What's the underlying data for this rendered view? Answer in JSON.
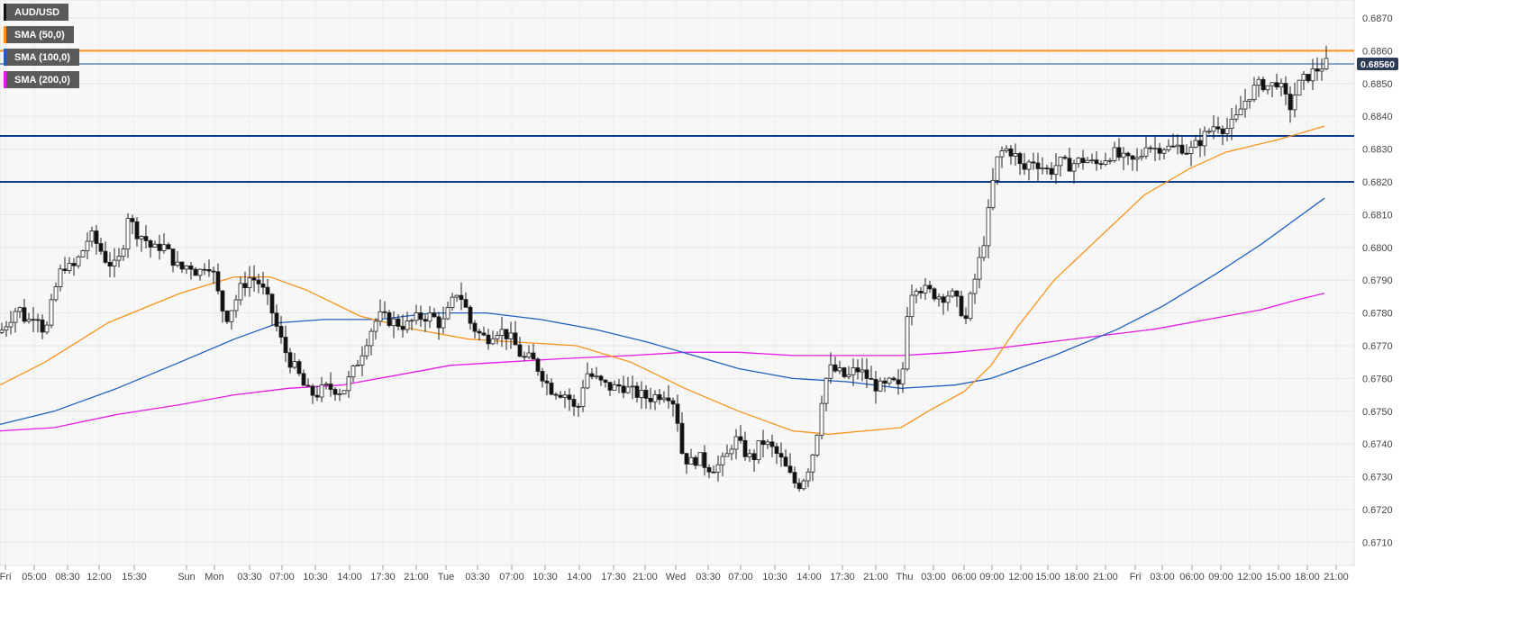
{
  "chart_data": {
    "type": "candlestick",
    "symbol": "AUD/USD",
    "legend": [
      {
        "label": "AUD/USD",
        "color": "#111111"
      },
      {
        "label": "SMA (50,0)",
        "color": "#f7931a"
      },
      {
        "label": "SMA (100,0)",
        "color": "#1f5fbf"
      },
      {
        "label": "SMA (200,0)",
        "color": "#e619e6"
      }
    ],
    "ylim": [
      0.67,
      0.6875
    ],
    "y_ticks": [
      "0.6710",
      "0.6720",
      "0.6730",
      "0.6740",
      "0.6750",
      "0.6760",
      "0.6770",
      "0.6780",
      "0.6790",
      "0.6800",
      "0.6810",
      "0.6820",
      "0.6830",
      "0.6840",
      "0.6850",
      "0.6860",
      "0.6870"
    ],
    "x_ticks": [
      "Fri",
      "05:00",
      "08:30",
      "12:00",
      "15:30",
      "Sun",
      "Mon",
      "03:30",
      "07:00",
      "10:30",
      "14:00",
      "17:30",
      "21:00",
      "Tue",
      "03:30",
      "07:00",
      "10:30",
      "14:00",
      "17:30",
      "21:00",
      "Wed",
      "03:30",
      "07:00",
      "10:30",
      "14:00",
      "17:30",
      "21:00",
      "Thu",
      "03:00",
      "06:00",
      "09:00",
      "12:00",
      "15:00",
      "18:00",
      "21:00",
      "Fri",
      "03:00",
      "06:00",
      "09:00",
      "12:00",
      "15:00",
      "18:00",
      "21:00"
    ],
    "last_price": "0.68560",
    "last_price_value": 0.6856,
    "horizontal_levels": [
      {
        "value": 0.686,
        "color": "#f7931a"
      },
      {
        "value": 0.6856,
        "color": "#1f4e99"
      },
      {
        "value": 0.6834,
        "color": "#0d3b8c"
      },
      {
        "value": 0.682,
        "color": "#0d3b8c"
      }
    ],
    "price_path": [
      [
        0,
        0.6774
      ],
      [
        10,
        0.6778
      ],
      [
        20,
        0.6782
      ],
      [
        30,
        0.6777
      ],
      [
        40,
        0.6781
      ],
      [
        50,
        0.6773
      ],
      [
        60,
        0.6786
      ],
      [
        70,
        0.6795
      ],
      [
        80,
        0.6793
      ],
      [
        90,
        0.6798
      ],
      [
        100,
        0.6804
      ],
      [
        110,
        0.68
      ],
      [
        118,
        0.6796
      ],
      [
        128,
        0.6794
      ],
      [
        135,
        0.6798
      ],
      [
        142,
        0.681
      ],
      [
        150,
        0.6805
      ],
      [
        160,
        0.6803
      ],
      [
        170,
        0.6799
      ],
      [
        180,
        0.6801
      ],
      [
        190,
        0.6797
      ],
      [
        200,
        0.6793
      ],
      [
        210,
        0.6795
      ],
      [
        220,
        0.6792
      ],
      [
        230,
        0.6796
      ],
      [
        238,
        0.6791
      ],
      [
        245,
        0.6782
      ],
      [
        252,
        0.6779
      ],
      [
        260,
        0.6783
      ],
      [
        268,
        0.6788
      ],
      [
        278,
        0.6791
      ],
      [
        288,
        0.6789
      ],
      [
        300,
        0.6782
      ],
      [
        310,
        0.6773
      ],
      [
        320,
        0.6766
      ],
      [
        330,
        0.6762
      ],
      [
        340,
        0.6756
      ],
      [
        350,
        0.6755
      ],
      [
        360,
        0.6757
      ],
      [
        370,
        0.6757
      ],
      [
        380,
        0.6756
      ],
      [
        390,
        0.6761
      ],
      [
        400,
        0.6767
      ],
      [
        410,
        0.6774
      ],
      [
        420,
        0.6779
      ],
      [
        430,
        0.6778
      ],
      [
        440,
        0.6777
      ],
      [
        450,
        0.6776
      ],
      [
        460,
        0.6778
      ],
      [
        470,
        0.6779
      ],
      [
        480,
        0.6779
      ],
      [
        490,
        0.6776
      ],
      [
        500,
        0.6782
      ],
      [
        508,
        0.6787
      ],
      [
        515,
        0.6783
      ],
      [
        522,
        0.6777
      ],
      [
        530,
        0.6774
      ],
      [
        540,
        0.6772
      ],
      [
        550,
        0.6775
      ],
      [
        560,
        0.6774
      ],
      [
        570,
        0.6771
      ],
      [
        580,
        0.6766
      ],
      [
        590,
        0.6766
      ],
      [
        600,
        0.6762
      ],
      [
        610,
        0.6757
      ],
      [
        620,
        0.6756
      ],
      [
        630,
        0.6755
      ],
      [
        640,
        0.6749
      ],
      [
        650,
        0.6762
      ],
      [
        660,
        0.676
      ],
      [
        670,
        0.6758
      ],
      [
        680,
        0.6757
      ],
      [
        690,
        0.6758
      ],
      [
        700,
        0.6756
      ],
      [
        710,
        0.6755
      ],
      [
        720,
        0.6754
      ],
      [
        730,
        0.6755
      ],
      [
        740,
        0.6756
      ],
      [
        750,
        0.6752
      ],
      [
        756,
        0.6738
      ],
      [
        765,
        0.6734
      ],
      [
        775,
        0.6736
      ],
      [
        785,
        0.6733
      ],
      [
        795,
        0.6733
      ],
      [
        805,
        0.6735
      ],
      [
        815,
        0.6742
      ],
      [
        825,
        0.6738
      ],
      [
        835,
        0.6735
      ],
      [
        845,
        0.6741
      ],
      [
        855,
        0.6739
      ],
      [
        865,
        0.6736
      ],
      [
        875,
        0.6731
      ],
      [
        885,
        0.6727
      ],
      [
        895,
        0.6731
      ],
      [
        905,
        0.674
      ],
      [
        913,
        0.6756
      ],
      [
        920,
        0.6763
      ],
      [
        930,
        0.6762
      ],
      [
        940,
        0.676
      ],
      [
        950,
        0.6763
      ],
      [
        960,
        0.6761
      ],
      [
        970,
        0.6758
      ],
      [
        980,
        0.6757
      ],
      [
        990,
        0.6759
      ],
      [
        1000,
        0.6756
      ],
      [
        1008,
        0.6784
      ],
      [
        1015,
        0.6789
      ],
      [
        1025,
        0.6787
      ],
      [
        1035,
        0.6786
      ],
      [
        1045,
        0.6785
      ],
      [
        1055,
        0.6786
      ],
      [
        1065,
        0.6782
      ],
      [
        1072,
        0.6778
      ],
      [
        1080,
        0.6788
      ],
      [
        1088,
        0.6797
      ],
      [
        1095,
        0.6806
      ],
      [
        1100,
        0.6817
      ],
      [
        1108,
        0.6828
      ],
      [
        1115,
        0.683
      ],
      [
        1125,
        0.6829
      ],
      [
        1135,
        0.6823
      ],
      [
        1145,
        0.6827
      ],
      [
        1155,
        0.6825
      ],
      [
        1165,
        0.6823
      ],
      [
        1175,
        0.6826
      ],
      [
        1185,
        0.6825
      ],
      [
        1195,
        0.6826
      ],
      [
        1205,
        0.6827
      ],
      [
        1215,
        0.6825
      ],
      [
        1225,
        0.6827
      ],
      [
        1235,
        0.6829
      ],
      [
        1245,
        0.6827
      ],
      [
        1255,
        0.6826
      ],
      [
        1265,
        0.6827
      ],
      [
        1272,
        0.6832
      ],
      [
        1280,
        0.683
      ],
      [
        1290,
        0.6831
      ],
      [
        1300,
        0.683
      ],
      [
        1310,
        0.6831
      ],
      [
        1320,
        0.6829
      ],
      [
        1330,
        0.6832
      ],
      [
        1340,
        0.6835
      ],
      [
        1350,
        0.6838
      ],
      [
        1360,
        0.6836
      ],
      [
        1370,
        0.6838
      ],
      [
        1380,
        0.6844
      ],
      [
        1390,
        0.6848
      ],
      [
        1400,
        0.685
      ],
      [
        1410,
        0.6849
      ],
      [
        1418,
        0.6851
      ],
      [
        1425,
        0.6846
      ],
      [
        1432,
        0.6843
      ],
      [
        1440,
        0.6849
      ],
      [
        1450,
        0.6852
      ],
      [
        1460,
        0.6854
      ],
      [
        1470,
        0.6856
      ]
    ],
    "sma_50": [
      [
        0,
        0.6758
      ],
      [
        50,
        0.6765
      ],
      [
        120,
        0.6777
      ],
      [
        200,
        0.6786
      ],
      [
        260,
        0.6791
      ],
      [
        300,
        0.6791
      ],
      [
        340,
        0.6787
      ],
      [
        400,
        0.6779
      ],
      [
        460,
        0.6775
      ],
      [
        520,
        0.6772
      ],
      [
        580,
        0.6771
      ],
      [
        640,
        0.677
      ],
      [
        700,
        0.6765
      ],
      [
        760,
        0.6757
      ],
      [
        820,
        0.675
      ],
      [
        880,
        0.6744
      ],
      [
        920,
        0.6743
      ],
      [
        960,
        0.6744
      ],
      [
        1000,
        0.6745
      ],
      [
        1030,
        0.675
      ],
      [
        1070,
        0.6756
      ],
      [
        1100,
        0.6764
      ],
      [
        1130,
        0.6776
      ],
      [
        1170,
        0.679
      ],
      [
        1220,
        0.6803
      ],
      [
        1270,
        0.6816
      ],
      [
        1320,
        0.6824
      ],
      [
        1360,
        0.6829
      ],
      [
        1420,
        0.6833
      ],
      [
        1470,
        0.6837
      ]
    ],
    "sma_100": [
      [
        0,
        0.6746
      ],
      [
        60,
        0.675
      ],
      [
        130,
        0.6757
      ],
      [
        200,
        0.6765
      ],
      [
        260,
        0.6772
      ],
      [
        310,
        0.6777
      ],
      [
        360,
        0.6778
      ],
      [
        420,
        0.6778
      ],
      [
        480,
        0.678
      ],
      [
        540,
        0.678
      ],
      [
        600,
        0.6778
      ],
      [
        660,
        0.6775
      ],
      [
        720,
        0.6771
      ],
      [
        770,
        0.6767
      ],
      [
        820,
        0.6763
      ],
      [
        880,
        0.676
      ],
      [
        940,
        0.6759
      ],
      [
        1000,
        0.6757
      ],
      [
        1060,
        0.6758
      ],
      [
        1100,
        0.676
      ],
      [
        1170,
        0.6767
      ],
      [
        1240,
        0.6775
      ],
      [
        1290,
        0.6782
      ],
      [
        1350,
        0.6792
      ],
      [
        1400,
        0.6801
      ],
      [
        1440,
        0.6809
      ],
      [
        1470,
        0.6815
      ]
    ],
    "sma_200": [
      [
        0,
        0.6744
      ],
      [
        60,
        0.6745
      ],
      [
        130,
        0.6749
      ],
      [
        200,
        0.6752
      ],
      [
        260,
        0.6755
      ],
      [
        320,
        0.6757
      ],
      [
        380,
        0.6758
      ],
      [
        440,
        0.6761
      ],
      [
        500,
        0.6764
      ],
      [
        560,
        0.6765
      ],
      [
        620,
        0.6766
      ],
      [
        700,
        0.6767
      ],
      [
        760,
        0.6768
      ],
      [
        820,
        0.6768
      ],
      [
        880,
        0.6767
      ],
      [
        940,
        0.6767
      ],
      [
        1000,
        0.6767
      ],
      [
        1060,
        0.6768
      ],
      [
        1100,
        0.6769
      ],
      [
        1160,
        0.6771
      ],
      [
        1220,
        0.6773
      ],
      [
        1280,
        0.6775
      ],
      [
        1340,
        0.6778
      ],
      [
        1400,
        0.6781
      ],
      [
        1440,
        0.6784
      ],
      [
        1470,
        0.6786
      ]
    ]
  }
}
